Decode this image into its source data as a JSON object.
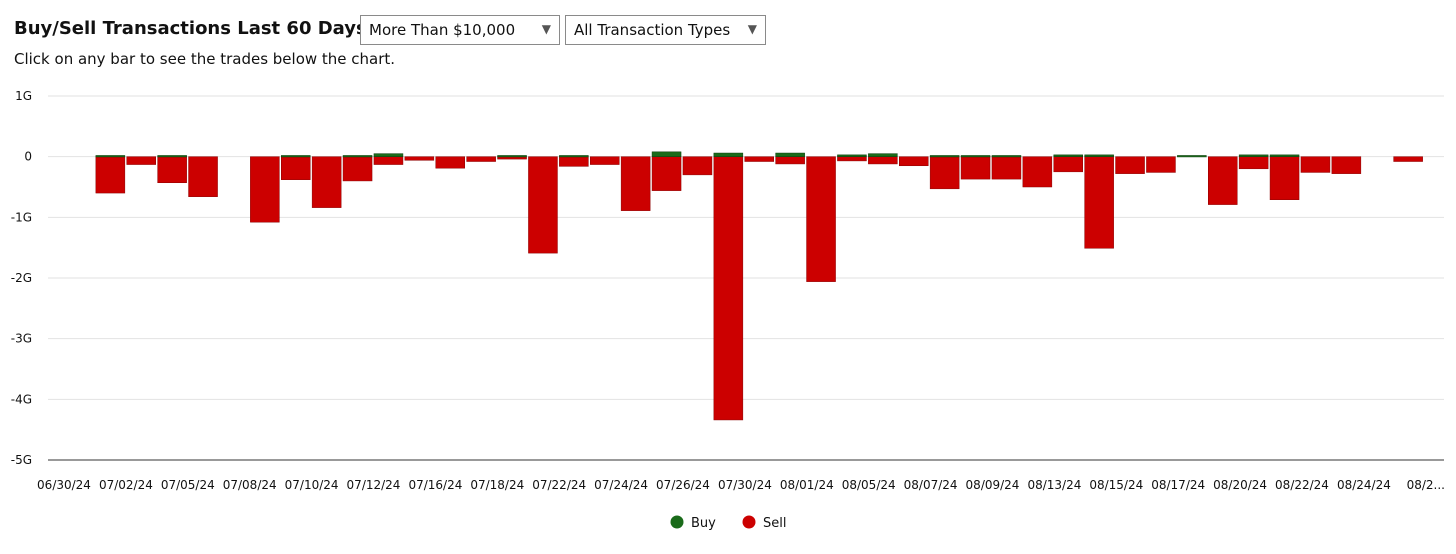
{
  "header": {
    "title": "Buy/Sell Transactions Last 60 Days",
    "subtitle": "Click on any bar to see the trades below the chart."
  },
  "filters": {
    "amount": {
      "selected": "More Than $10,000"
    },
    "type": {
      "selected": "All Transaction Types"
    }
  },
  "colors": {
    "buy": "#1a6b1a",
    "sell": "#cc0000",
    "grid": "#e2e2e2"
  },
  "chart_data": {
    "type": "bar",
    "stacked": true,
    "ylim": [
      -5,
      1
    ],
    "y_ticks": [
      {
        "value": 1,
        "label": "1G"
      },
      {
        "value": 0,
        "label": "0"
      },
      {
        "value": -1,
        "label": "-1G"
      },
      {
        "value": -2,
        "label": "-2G"
      },
      {
        "value": -3,
        "label": "-3G"
      },
      {
        "value": -4,
        "label": "-4G"
      },
      {
        "value": -5,
        "label": "-5G"
      }
    ],
    "x_tick_labels": [
      "06/30/24",
      "07/02/24",
      "07/05/24",
      "07/08/24",
      "07/10/24",
      "07/12/24",
      "07/16/24",
      "07/18/24",
      "07/22/24",
      "07/24/24",
      "07/26/24",
      "07/30/24",
      "08/01/24",
      "08/05/24",
      "08/07/24",
      "08/09/24",
      "08/13/24",
      "08/15/24",
      "08/17/24",
      "08/20/24",
      "08/22/24",
      "08/24/24",
      "08/2..."
    ],
    "legend": [
      "Buy",
      "Sell"
    ],
    "grid": true,
    "legend_position": "bottom-center",
    "series": [
      {
        "name": "Buy",
        "values": [
          0,
          0.02,
          0,
          0.02,
          0,
          0,
          0,
          0.02,
          0,
          0.02,
          0.05,
          0,
          0,
          0,
          0.02,
          0,
          0.02,
          0,
          0,
          0.08,
          0,
          0.06,
          0,
          0.06,
          0,
          0.03,
          0.05,
          0,
          0.02,
          0.02,
          0.02,
          0,
          0.03,
          0.03,
          0,
          0,
          0.02,
          0,
          0.03,
          0.03,
          0,
          0,
          0,
          0
        ]
      },
      {
        "name": "Sell",
        "values": [
          0,
          -0.6,
          -0.13,
          -0.43,
          -0.66,
          0,
          -1.08,
          -0.38,
          -0.84,
          -0.4,
          -0.13,
          -0.06,
          -0.19,
          -0.08,
          -0.04,
          -1.59,
          -0.16,
          -0.13,
          -0.89,
          -0.56,
          -0.3,
          -4.34,
          -0.08,
          -0.12,
          -2.06,
          -0.07,
          -0.12,
          -0.15,
          -0.53,
          -0.37,
          -0.37,
          -0.5,
          -0.25,
          -1.51,
          -0.28,
          -0.26,
          0,
          -0.79,
          -0.2,
          -0.71,
          -0.26,
          -0.28,
          0,
          -0.08
        ]
      }
    ]
  }
}
